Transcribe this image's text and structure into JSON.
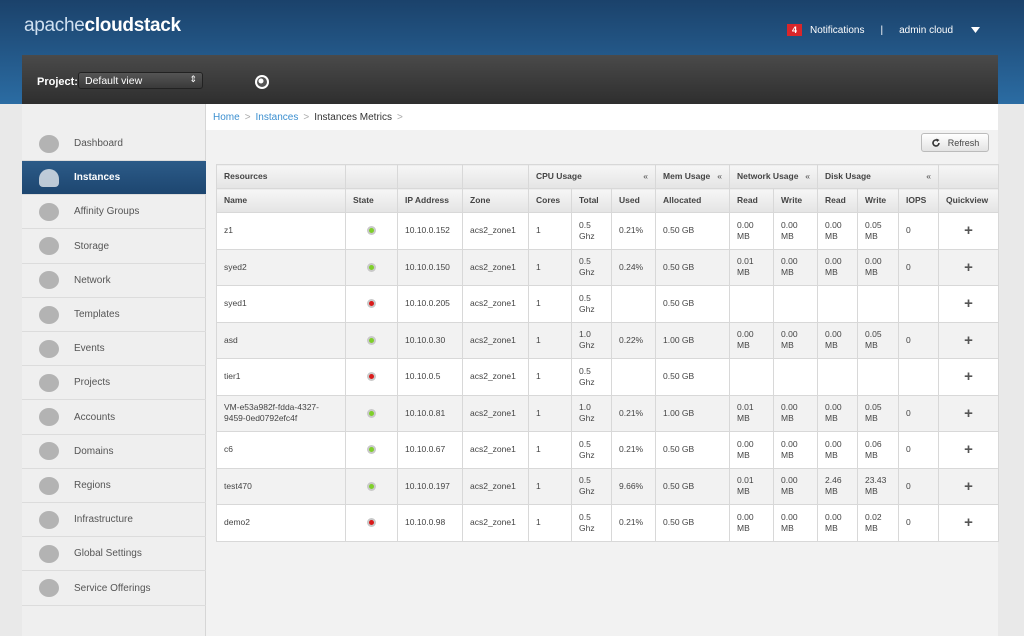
{
  "header": {
    "logo_light": "apache",
    "logo_bold": "cloudstack",
    "notification_count": "4",
    "notifications": "Notifications",
    "separator": "|",
    "user": "admin cloud"
  },
  "project_bar": {
    "label": "Project:",
    "selected": "Default view"
  },
  "sidebar": {
    "active": 1,
    "items": [
      "Dashboard",
      "Instances",
      "Affinity Groups",
      "Storage",
      "Network",
      "Templates",
      "Events",
      "Projects",
      "Accounts",
      "Domains",
      "Regions",
      "Infrastructure",
      "Global Settings",
      "Service Offerings"
    ]
  },
  "breadcrumb": {
    "links": [
      "Home",
      "Instances"
    ],
    "current": "Instances Metrics",
    "separator": ">"
  },
  "toolbar": {
    "refresh": "Refresh"
  },
  "table": {
    "groups": [
      {
        "label": "Resources",
        "span": 1
      },
      {
        "label": null,
        "span": 1
      },
      {
        "label": null,
        "span": 1
      },
      {
        "label": null,
        "span": 1
      },
      {
        "label": "CPU Usage",
        "span": 3,
        "collapse": "«"
      },
      {
        "label": "Mem Usage",
        "span": 1,
        "collapse": "«"
      },
      {
        "label": "Network Usage",
        "span": 2,
        "collapse": "«"
      },
      {
        "label": "Disk Usage",
        "span": 3,
        "collapse": "«"
      },
      {
        "label": null,
        "span": 1
      }
    ],
    "columns": [
      "Name",
      "State",
      "IP Address",
      "Zone",
      "Cores",
      "Total",
      "Used",
      "Allocated",
      "Read",
      "Write",
      "Read",
      "Write",
      "IOPS",
      "Quickview"
    ],
    "quickview": "+",
    "rows": [
      {
        "name": "z1",
        "state": "green",
        "ip": "10.10.0.152",
        "zone": "acs2_zone1",
        "cores": "1",
        "cpu_total": "0.5 Ghz",
        "cpu_used": "0.21%",
        "mem": "0.50 GB",
        "net_read": "0.00 MB",
        "net_write": "0.00 MB",
        "disk_read": "0.00 MB",
        "disk_write": "0.05 MB",
        "iops": "0"
      },
      {
        "name": "syed2",
        "state": "green",
        "ip": "10.10.0.150",
        "zone": "acs2_zone1",
        "cores": "1",
        "cpu_total": "0.5 Ghz",
        "cpu_used": "0.24%",
        "mem": "0.50 GB",
        "net_read": "0.01 MB",
        "net_write": "0.00 MB",
        "disk_read": "0.00 MB",
        "disk_write": "0.00 MB",
        "iops": "0"
      },
      {
        "name": "syed1",
        "state": "red",
        "ip": "10.10.0.205",
        "zone": "acs2_zone1",
        "cores": "1",
        "cpu_total": "0.5 Ghz",
        "cpu_used": null,
        "mem": "0.50 GB",
        "net_read": null,
        "net_write": null,
        "disk_read": null,
        "disk_write": null,
        "iops": null
      },
      {
        "name": "asd",
        "state": "green",
        "ip": "10.10.0.30",
        "zone": "acs2_zone1",
        "cores": "1",
        "cpu_total": "1.0 Ghz",
        "cpu_used": "0.22%",
        "mem": "1.00 GB",
        "net_read": "0.00 MB",
        "net_write": "0.00 MB",
        "disk_read": "0.00 MB",
        "disk_write": "0.05 MB",
        "iops": "0"
      },
      {
        "name": "tier1",
        "state": "red",
        "ip": "10.10.0.5",
        "zone": "acs2_zone1",
        "cores": "1",
        "cpu_total": "0.5 Ghz",
        "cpu_used": null,
        "mem": "0.50 GB",
        "net_read": null,
        "net_write": null,
        "disk_read": null,
        "disk_write": null,
        "iops": null
      },
      {
        "name": "VM-e53a982f-fdda-4327-9459-0ed0792efc4f",
        "state": "green",
        "ip": "10.10.0.81",
        "zone": "acs2_zone1",
        "cores": "1",
        "cpu_total": "1.0 Ghz",
        "cpu_used": "0.21%",
        "mem": "1.00 GB",
        "net_read": "0.01 MB",
        "net_write": "0.00 MB",
        "disk_read": "0.00 MB",
        "disk_write": "0.05 MB",
        "iops": "0"
      },
      {
        "name": "c6",
        "state": "green",
        "ip": "10.10.0.67",
        "zone": "acs2_zone1",
        "cores": "1",
        "cpu_total": "0.5 Ghz",
        "cpu_used": "0.21%",
        "mem": "0.50 GB",
        "net_read": "0.00 MB",
        "net_write": "0.00 MB",
        "disk_read": "0.00 MB",
        "disk_write": "0.06 MB",
        "iops": "0"
      },
      {
        "name": "test470",
        "state": "green",
        "ip": "10.10.0.197",
        "zone": "acs2_zone1",
        "cores": "1",
        "cpu_total": "0.5 Ghz",
        "cpu_used": "9.66%",
        "mem": "0.50 GB",
        "net_read": "0.01 MB",
        "net_write": "0.00 MB",
        "disk_read": "2.46 MB",
        "disk_write": "23.43 MB",
        "iops": "0"
      },
      {
        "name": "demo2",
        "state": "red",
        "ip": "10.10.0.98",
        "zone": "acs2_zone1",
        "cores": "1",
        "cpu_total": "0.5 Ghz",
        "cpu_used": "0.21%",
        "mem": "0.50 GB",
        "net_read": "0.00 MB",
        "net_write": "0.00 MB",
        "disk_read": "0.00 MB",
        "disk_write": "0.02 MB",
        "iops": "0"
      }
    ]
  }
}
